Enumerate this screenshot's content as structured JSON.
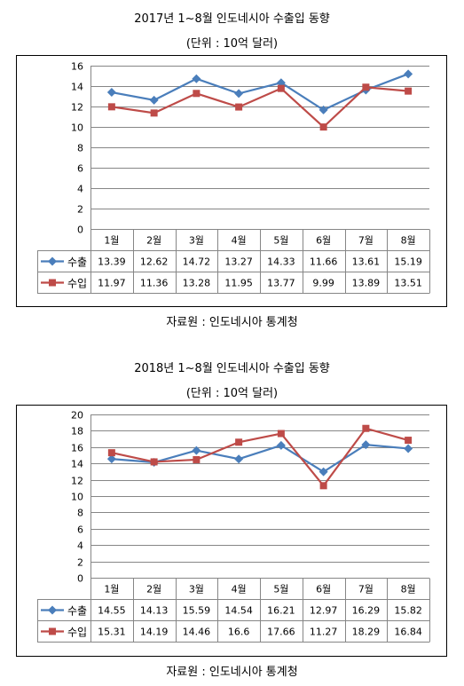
{
  "charts": [
    {
      "title": "2017년 1~8월 인도네시아 수출입 동향",
      "subtitle": "(단위 : 10억 달러)",
      "source": "자료원 : 인도네시아 통계청"
    },
    {
      "title": "2018년 1~8월 인도네시아 수출입 동향",
      "subtitle": "(단위 : 10억 달러)",
      "source": "자료원 : 인도네시아 통계청"
    }
  ],
  "chart_data": [
    {
      "type": "line",
      "title": "2017년 1~8월 인도네시아 수출입 동향",
      "subtitle": "(단위 : 10억 달러)",
      "categories": [
        "1월",
        "2월",
        "3월",
        "4월",
        "5월",
        "6월",
        "7월",
        "8월"
      ],
      "series": [
        {
          "name": "수출",
          "values": [
            13.39,
            12.62,
            14.72,
            13.27,
            14.33,
            11.66,
            13.61,
            15.19
          ],
          "color": "#4a7ebb",
          "marker": "diamond"
        },
        {
          "name": "수입",
          "values": [
            11.97,
            11.36,
            13.28,
            11.95,
            13.77,
            9.99,
            13.89,
            13.51
          ],
          "color": "#be4b48",
          "marker": "square"
        }
      ],
      "yticks": [
        0,
        2,
        4,
        6,
        8,
        10,
        12,
        14,
        16
      ],
      "ylim": [
        0,
        16
      ],
      "grid": true,
      "legend": "data-table"
    },
    {
      "type": "line",
      "title": "2018년 1~8월 인도네시아 수출입 동향",
      "subtitle": "(단위 : 10억 달러)",
      "categories": [
        "1월",
        "2월",
        "3월",
        "4월",
        "5월",
        "6월",
        "7월",
        "8월"
      ],
      "series": [
        {
          "name": "수출",
          "values": [
            14.55,
            14.13,
            15.59,
            14.54,
            16.21,
            12.97,
            16.29,
            15.82
          ],
          "color": "#4a7ebb",
          "marker": "diamond"
        },
        {
          "name": "수입",
          "values": [
            15.31,
            14.19,
            14.46,
            16.6,
            17.66,
            11.27,
            18.29,
            16.84
          ],
          "color": "#be4b48",
          "marker": "square"
        }
      ],
      "yticks": [
        0,
        2,
        4,
        6,
        8,
        10,
        12,
        14,
        16,
        18,
        20
      ],
      "ylim": [
        0,
        20
      ],
      "grid": true,
      "legend": "data-table"
    }
  ]
}
